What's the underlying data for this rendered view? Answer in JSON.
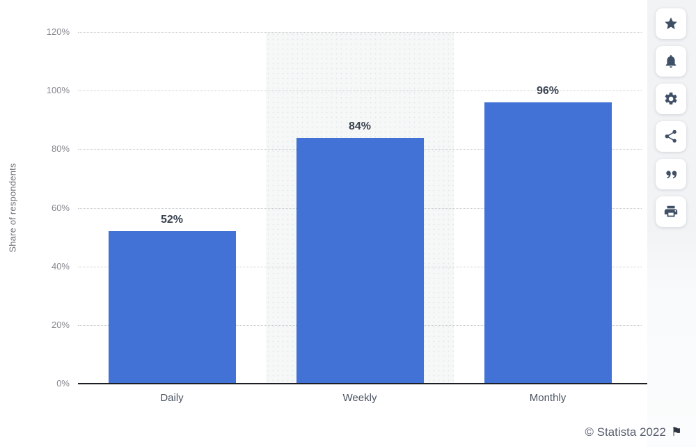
{
  "chart_data": {
    "type": "bar",
    "title": "",
    "categories": [
      "Daily",
      "Weekly",
      "Monthly"
    ],
    "values": [
      52,
      84,
      96
    ],
    "value_labels": [
      "52%",
      "84%",
      "96%"
    ],
    "xlabel": "",
    "ylabel": "Share of respondents",
    "ylim": [
      0,
      120
    ],
    "ytick_step": 20,
    "ytick_labels": [
      "0%",
      "20%",
      "40%",
      "60%",
      "80%",
      "100%",
      "120%"
    ],
    "grid": "horizontal-dotted",
    "legend": "none",
    "highlight_category_index": 1,
    "bar_color": "#4272d6"
  },
  "toolbar": {
    "buttons": [
      {
        "id": "favorite",
        "icon": "star-icon"
      },
      {
        "id": "notifications",
        "icon": "bell-icon"
      },
      {
        "id": "settings",
        "icon": "gear-icon"
      },
      {
        "id": "share",
        "icon": "share-icon"
      },
      {
        "id": "cite",
        "icon": "quote-icon"
      },
      {
        "id": "print",
        "icon": "printer-icon"
      }
    ]
  },
  "footer": {
    "credit": "© Statista 2022",
    "flag": "⚑"
  },
  "colors": {
    "bar": "#4272d6",
    "axis": "#1b1e22",
    "gridline": "#c7cbcc",
    "highlight_band": "#f6f8f8",
    "tick_text": "#86868f",
    "value_text": "#3a4350",
    "category_text": "#4b5361",
    "credit_text": "#575e6d",
    "icon_color": "#3e4f66",
    "toolbar_strip": "#f1f3f5"
  }
}
